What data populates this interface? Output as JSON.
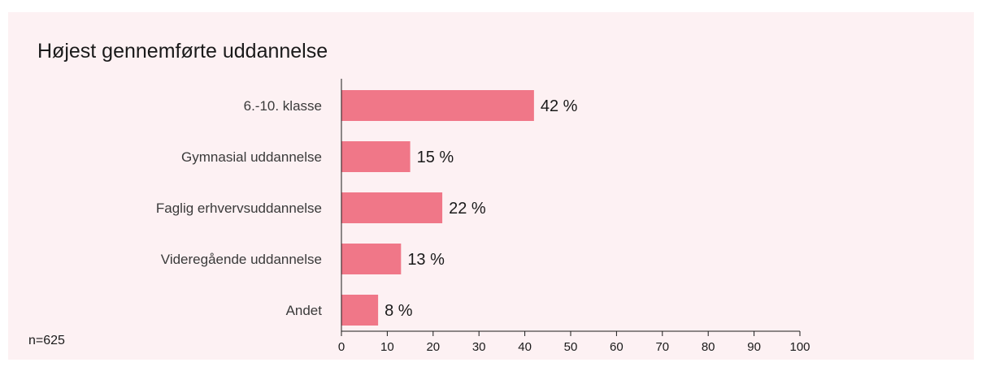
{
  "colors": {
    "background": "#fdf1f3",
    "bar": "#f07788",
    "axis": "#1a1a1a"
  },
  "chart_data": {
    "type": "bar",
    "orientation": "horizontal",
    "title": "Højest gennemførte uddannelse",
    "note": "n=625",
    "categories": [
      "6.-10. klasse",
      "Gymnasial uddannelse",
      "Faglig erhvervsuddannelse",
      "Videregående uddannelse",
      "Andet"
    ],
    "values": [
      42,
      15,
      22,
      13,
      8
    ],
    "value_labels": [
      "42 %",
      "15 %",
      "22 %",
      "13 %",
      "8 %"
    ],
    "xlim": [
      0,
      100
    ],
    "xticks": [
      0,
      10,
      20,
      30,
      40,
      50,
      60,
      70,
      80,
      90,
      100
    ],
    "grid": false,
    "legend": "none"
  }
}
